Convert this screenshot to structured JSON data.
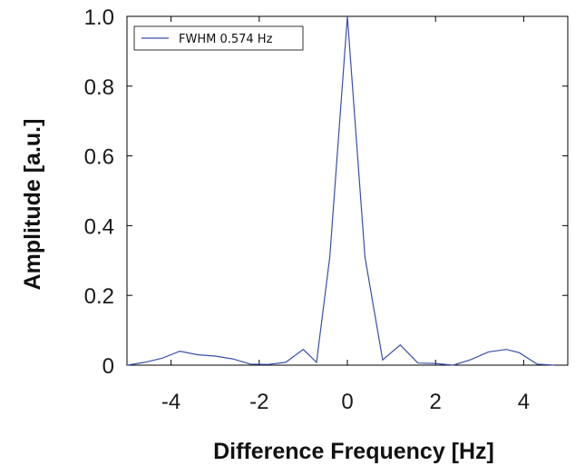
{
  "chart_data": {
    "type": "line",
    "xlabel": "Difference Frequency [Hz]",
    "ylabel": "Amplitude [a.u.]",
    "xlim": [
      -5,
      5
    ],
    "ylim": [
      0,
      1.0
    ],
    "xticks": [
      -4,
      -2,
      0,
      2,
      4
    ],
    "xtick_labels": [
      "-4",
      "-2",
      "0",
      "2",
      "4"
    ],
    "yticks": [
      0,
      0.2,
      0.4,
      0.6,
      0.8,
      1.0
    ],
    "ytick_labels": [
      "0",
      "0.2",
      "0.4",
      "0.6",
      "0.8",
      "1.0"
    ],
    "grid": false,
    "legend_position": "top-left",
    "series": [
      {
        "name": "FWHM 0.574 Hz",
        "color": "#3a4fa8",
        "x": [
          -5.0,
          -4.6,
          -4.2,
          -3.8,
          -3.4,
          -3.0,
          -2.6,
          -2.2,
          -1.8,
          -1.4,
          -1.0,
          -0.7,
          -0.4,
          0.0,
          0.4,
          0.8,
          1.2,
          1.6,
          2.0,
          2.4,
          2.8,
          3.2,
          3.6,
          3.9,
          4.3,
          4.7
        ],
        "values": [
          0.0,
          0.008,
          0.02,
          0.04,
          0.03,
          0.026,
          0.018,
          0.003,
          0.002,
          0.008,
          0.045,
          0.008,
          0.31,
          1.0,
          0.31,
          0.015,
          0.058,
          0.006,
          0.005,
          0.0,
          0.016,
          0.038,
          0.045,
          0.036,
          0.003,
          0.0
        ]
      }
    ]
  }
}
